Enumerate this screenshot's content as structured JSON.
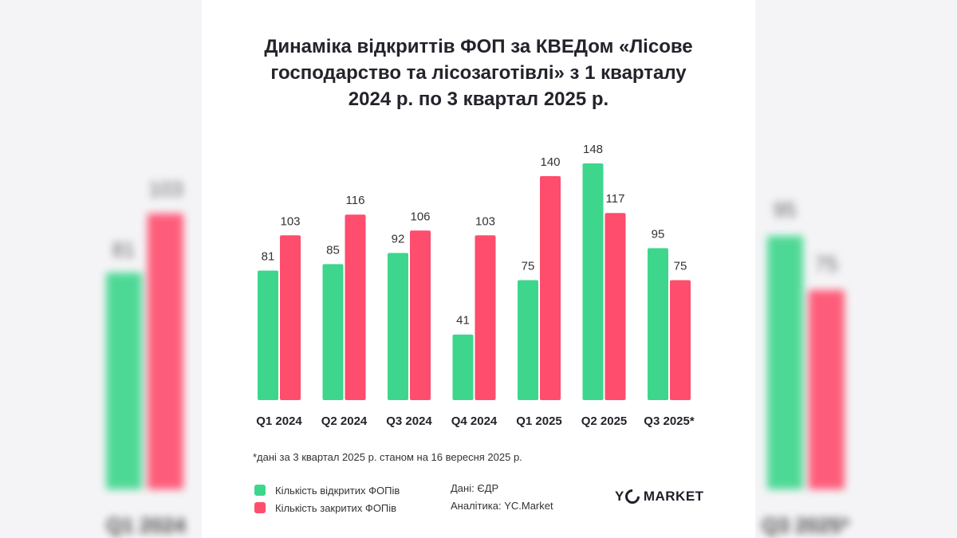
{
  "title_lines": [
    "Динаміка відкриттів ФОП за КВЕДом «Лісове",
    "господарство та лісозаготівлі» з 1 кварталу",
    "2024 р. по 3 квартал 2025 р."
  ],
  "chart_data": {
    "type": "bar",
    "title": "Динаміка відкриттів ФОП за КВЕДом «Лісове господарство та лісозаготівлі» з 1 кварталу 2024 р. по 3 квартал 2025 р.",
    "categories": [
      "Q1 2024",
      "Q2 2024",
      "Q3 2024",
      "Q4 2024",
      "Q1 2025",
      "Q2 2025",
      "Q3 2025*"
    ],
    "series": [
      {
        "name": "Кількість відкритих ФОПів",
        "color": "#3dd68c",
        "values": [
          81,
          85,
          92,
          41,
          75,
          148,
          95
        ]
      },
      {
        "name": "Кількість закритих ФОПів",
        "color": "#ff4d6d",
        "values": [
          103,
          116,
          106,
          103,
          140,
          117,
          75
        ]
      }
    ],
    "ylim": [
      0,
      150
    ],
    "grid": false,
    "legend": "bottom-left",
    "xlabel": "",
    "ylabel": ""
  },
  "footnote": "*дані за 3 квартал 2025 р. станом на 16 вересня 2025 р.",
  "source": {
    "data": "Дані: ЄДР",
    "analytics": "Аналітика: YC.Market"
  },
  "logo": {
    "left": "Y",
    "right": "MARKET"
  }
}
